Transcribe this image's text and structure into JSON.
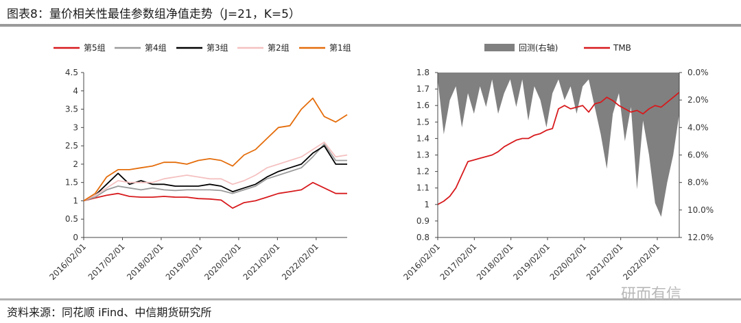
{
  "title": "图表8：量价相关性最佳参数组净值走势（J=21，K=5）",
  "source": "资料来源：同花顺 iFind、中信期货研究所",
  "watermark": "研而有信",
  "chart_data": [
    {
      "type": "line",
      "x_ticks": [
        "2016/02/01",
        "2017/02/01",
        "2018/02/01",
        "2019/02/01",
        "2020/02/01",
        "2021/02/01",
        "2022/02/01"
      ],
      "ylim": [
        0,
        4.5
      ],
      "y_ticks": [
        "0",
        "0.5",
        "1",
        "1.5",
        "2",
        "2.5",
        "3",
        "3.5",
        "4",
        "4.5"
      ],
      "legend_position": "top",
      "series": [
        {
          "name": "第5组",
          "color": "#d7191c",
          "values": [
            1.0,
            1.08,
            1.15,
            1.2,
            1.12,
            1.1,
            1.1,
            1.12,
            1.1,
            1.1,
            1.06,
            1.05,
            1.02,
            0.8,
            0.95,
            1.0,
            1.1,
            1.2,
            1.25,
            1.3,
            1.5,
            1.35,
            1.2,
            1.2
          ]
        },
        {
          "name": "第4组",
          "color": "#9a9a9a",
          "values": [
            1.0,
            1.1,
            1.3,
            1.4,
            1.35,
            1.3,
            1.35,
            1.3,
            1.28,
            1.3,
            1.3,
            1.3,
            1.28,
            1.2,
            1.3,
            1.4,
            1.6,
            1.7,
            1.8,
            1.9,
            2.2,
            2.55,
            2.1,
            2.1
          ]
        },
        {
          "name": "第3组",
          "color": "#000000",
          "values": [
            1.0,
            1.15,
            1.45,
            1.75,
            1.45,
            1.55,
            1.45,
            1.45,
            1.4,
            1.4,
            1.4,
            1.45,
            1.4,
            1.25,
            1.35,
            1.45,
            1.65,
            1.8,
            1.9,
            2.0,
            2.3,
            2.5,
            2.0,
            2.0
          ]
        },
        {
          "name": "第2组",
          "color": "#f5c0c0",
          "values": [
            1.0,
            1.15,
            1.35,
            1.55,
            1.5,
            1.5,
            1.5,
            1.6,
            1.65,
            1.7,
            1.65,
            1.6,
            1.6,
            1.45,
            1.55,
            1.7,
            1.9,
            2.0,
            2.1,
            2.2,
            2.4,
            2.6,
            2.2,
            2.25
          ]
        },
        {
          "name": "第1组",
          "color": "#e46c0a",
          "values": [
            1.0,
            1.2,
            1.65,
            1.85,
            1.85,
            1.9,
            1.95,
            2.05,
            2.05,
            2.0,
            2.1,
            2.15,
            2.1,
            1.95,
            2.25,
            2.4,
            2.7,
            3.0,
            3.05,
            3.5,
            3.8,
            3.3,
            3.15,
            3.35
          ]
        }
      ]
    },
    {
      "type": "area",
      "x_ticks": [
        "2016/02/01",
        "2017/02/01",
        "2018/02/01",
        "2019/02/01",
        "2020/02/01",
        "2021/02/01",
        "2022/02/01"
      ],
      "ylim": [
        0.8,
        1.8
      ],
      "y_ticks": [
        "0.8",
        "0.9",
        "1",
        "1.1",
        "1.2",
        "1.3",
        "1.4",
        "1.5",
        "1.6",
        "1.7",
        "1.8"
      ],
      "y2lim": [
        0,
        12
      ],
      "y2_ticks": [
        "0.0%",
        "2.0%",
        "4.0%",
        "6.0%",
        "8.0%",
        "10.0%",
        "12.0%"
      ],
      "legend_position": "top",
      "series": [
        {
          "name": "回测(右轴)",
          "color": "#808080",
          "axis": "right",
          "values": [
            0.5,
            4.5,
            2.0,
            1.0,
            4.0,
            1.5,
            3.0,
            1.0,
            2.5,
            0.5,
            3.0,
            1.5,
            0.5,
            2.5,
            0.5,
            3.5,
            1.0,
            2.0,
            4.0,
            1.5,
            0.5,
            2.0,
            1.0,
            3.0,
            1.0,
            0.5,
            2.5,
            4.5,
            7.0,
            3.0,
            1.5,
            5.0,
            2.5,
            8.5,
            3.5,
            6.0,
            9.5,
            10.5,
            8.0,
            6.0,
            3.0
          ]
        },
        {
          "name": "TMB",
          "color": "#d7191c",
          "axis": "left",
          "values": [
            1.0,
            1.02,
            1.05,
            1.1,
            1.18,
            1.26,
            1.27,
            1.28,
            1.29,
            1.3,
            1.32,
            1.35,
            1.37,
            1.39,
            1.4,
            1.4,
            1.42,
            1.43,
            1.45,
            1.46,
            1.58,
            1.6,
            1.58,
            1.59,
            1.6,
            1.56,
            1.61,
            1.62,
            1.65,
            1.63,
            1.6,
            1.58,
            1.56,
            1.57,
            1.55,
            1.58,
            1.6,
            1.59,
            1.62,
            1.65,
            1.68
          ]
        }
      ]
    }
  ]
}
